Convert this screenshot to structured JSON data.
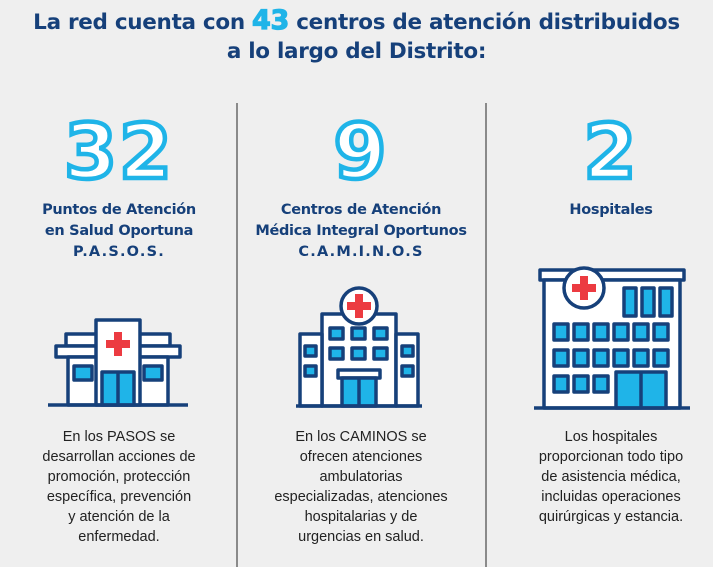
{
  "header": {
    "text_before": "La red cuenta con",
    "highlight": "43",
    "text_after_line1": "centros de atención distribuidos",
    "line2": "a lo largo del Distrito:"
  },
  "columns": [
    {
      "number": "32",
      "title_lines": [
        "Puntos de Atención",
        "en Salud Oportuna"
      ],
      "acronym": "P.A.S.O.S.",
      "icon": "clinic-building-icon",
      "description_lines": [
        "En los PASOS se",
        "desarrollan acciones de",
        "promoción, protección",
        "específica, prevención",
        "y atención de la",
        "enfermedad."
      ]
    },
    {
      "number": "9",
      "title_lines": [
        "Centros de Atención",
        "Médica Integral Oportunos"
      ],
      "acronym": "C.A.M.I.N.O.S",
      "icon": "medical-center-building-icon",
      "description_lines": [
        "En los CAMINOS se",
        "ofrecen atenciones",
        "ambulatorias",
        "especializadas, atenciones",
        "hospitalarias y de",
        "urgencias en salud."
      ]
    },
    {
      "number": "2",
      "title_lines": [
        "Hospitales"
      ],
      "acronym": "",
      "icon": "hospital-building-icon",
      "description_lines": [
        "Los hospitales",
        "proporcionan todo tipo",
        "de asistencia médica,",
        "incluidas operaciones",
        "quirúrgicas y estancia."
      ]
    }
  ],
  "colors": {
    "navy": "#16407a",
    "cyan": "#1fb4e8",
    "red": "#ec3b41",
    "background": "#efefef"
  }
}
